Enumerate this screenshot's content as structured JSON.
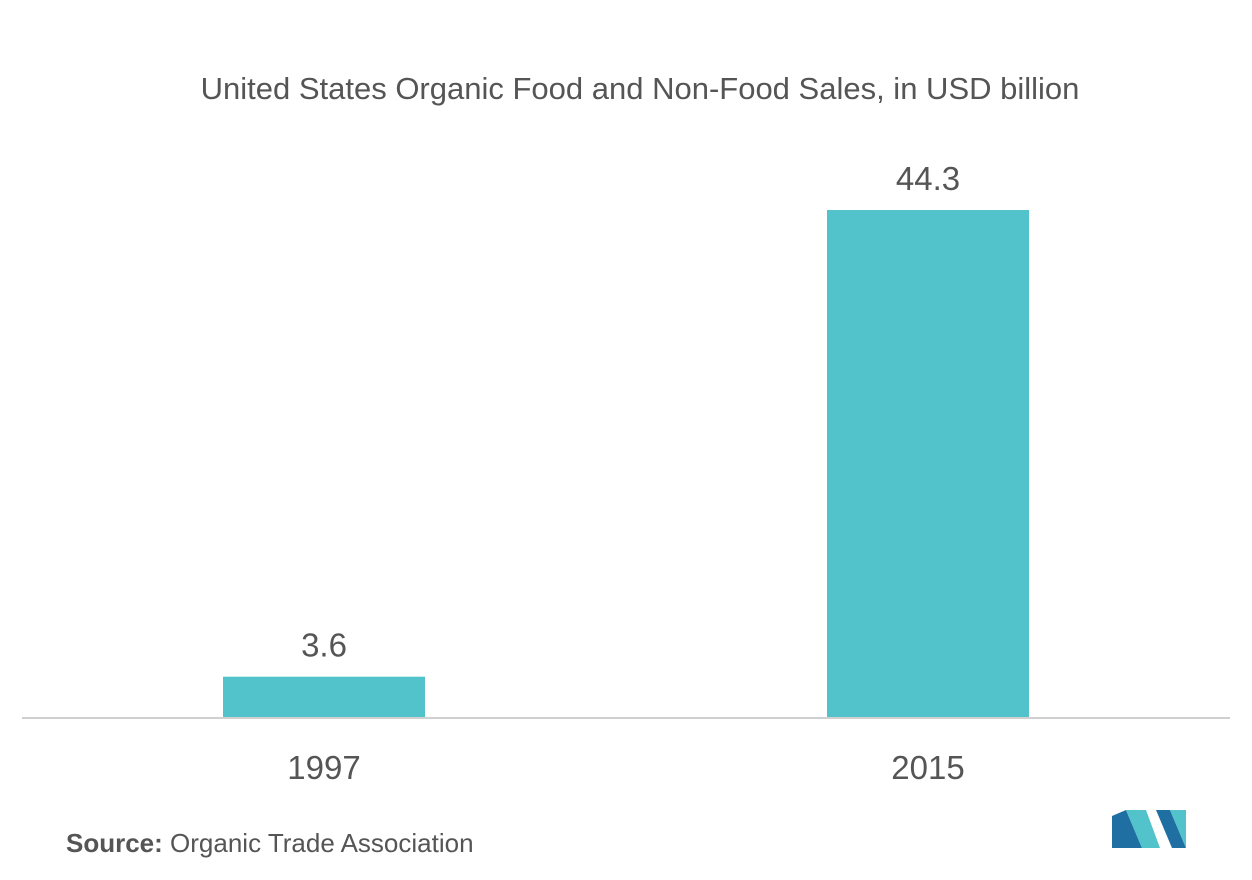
{
  "chart_data": {
    "type": "bar",
    "title": "United States Organic Food and Non-Food Sales, in USD billion",
    "categories": [
      "1997",
      "2015"
    ],
    "values": [
      3.6,
      44.3
    ],
    "value_labels": [
      "3.6",
      "44.3"
    ],
    "xlabel": "",
    "ylabel": "",
    "ylim": [
      0,
      44.3
    ],
    "grid": false,
    "legend": "none",
    "bar_color": "#52c3ca",
    "axis_color": "#d0d0d0"
  },
  "source": {
    "prefix": "Source:",
    "text": " Organic Trade Association"
  },
  "logo": {
    "icon": "mordor-intelligence-logo-icon",
    "colors": [
      "#1f6fa3",
      "#52c3ca"
    ]
  }
}
